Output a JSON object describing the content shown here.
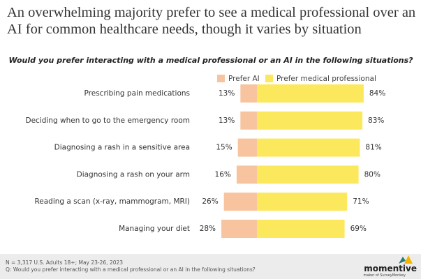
{
  "chart_data": {
    "type": "diverging-bar",
    "title": [
      "An overwhelming majority prefer to see a medical professional over an",
      "AI for common healthcare needs, though it varies by situation"
    ],
    "subtitle": "Would you prefer interacting with a medical professional or an AI in the following situations?",
    "categories": [
      "Prescribing pain medications",
      "Deciding when to go to the emergency room",
      "Diagnosing a rash in a sensitive area",
      "Diagnosing a rash on your arm",
      "Reading a scan (x-ray, mammogram, MRI)",
      "Managing your diet"
    ],
    "series": [
      {
        "name": "Prefer AI",
        "color": "#f8c4a0",
        "values": [
          13,
          13,
          15,
          16,
          26,
          28
        ],
        "value_labels": [
          "13%",
          "13%",
          "15%",
          "16%",
          "26%",
          "28%"
        ]
      },
      {
        "name": "Prefer medical professional",
        "color": "#fce85c",
        "values": [
          84,
          83,
          81,
          80,
          71,
          69
        ],
        "value_labels": [
          "84%",
          "83%",
          "81%",
          "80%",
          "71%",
          "69%"
        ]
      }
    ],
    "notes": [
      "N = 3,317 U.S. Adults 18+; May 23-26, 2023",
      "Q: Would you prefer interacting with a medical professional or an AI in the following situations?"
    ],
    "logo": {
      "name": "momentive",
      "tagline": "maker of SurveyMonkey"
    }
  }
}
